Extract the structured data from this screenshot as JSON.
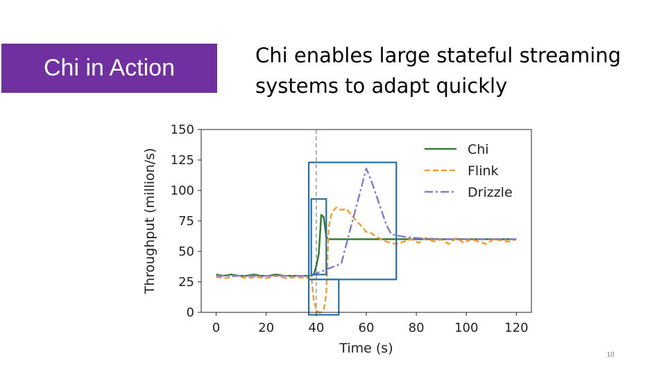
{
  "section_tab": {
    "label": "Chi in Action"
  },
  "slide": {
    "title_line1": "Chi enables large stateful streaming",
    "title_line2": "systems to adapt quickly",
    "number": "10"
  },
  "colors": {
    "section_tab": "#7030a0",
    "Chi": "#2e7d32",
    "Flink": "#f0a030",
    "Drizzle": "#8878d8",
    "highlight_box": "#1f6fa8",
    "event_line": "#999999"
  },
  "chart_data": {
    "type": "line",
    "xlabel": "Time (s)",
    "ylabel": "Throughput (million/s)",
    "xlim": [
      -6,
      126
    ],
    "ylim": [
      0,
      150
    ],
    "xticks": [
      0,
      20,
      40,
      60,
      80,
      100,
      120
    ],
    "yticks": [
      0,
      25,
      50,
      75,
      100,
      125,
      150
    ],
    "grid": false,
    "legend_position": "top-right",
    "event_marker_x": 40,
    "highlight_regions": [
      {
        "x": [
          37,
          72
        ],
        "y": [
          27,
          123
        ]
      },
      {
        "x": [
          38,
          44
        ],
        "y": [
          31,
          93
        ]
      },
      {
        "x": [
          37,
          49
        ],
        "y": [
          -2,
          27
        ]
      }
    ],
    "series": [
      {
        "name": "Chi",
        "style": "solid",
        "x": [
          0,
          3,
          6,
          9,
          12,
          15,
          18,
          21,
          24,
          27,
          30,
          33,
          36,
          38,
          39,
          40,
          41,
          42,
          43,
          44,
          45,
          50,
          60,
          70,
          80,
          90,
          100,
          110,
          120
        ],
        "y": [
          31,
          30,
          31,
          30,
          30,
          31,
          30,
          30,
          31,
          30,
          30,
          30,
          30,
          30,
          31,
          38,
          48,
          80,
          78,
          62,
          60,
          60,
          60,
          60,
          60,
          60,
          60,
          60,
          60
        ]
      },
      {
        "name": "Flink",
        "style": "dashed",
        "x": [
          0,
          4,
          8,
          12,
          16,
          20,
          24,
          28,
          32,
          36,
          38,
          39,
          40,
          41,
          42,
          43,
          44,
          45,
          46,
          47,
          48,
          50,
          52,
          54,
          56,
          58,
          60,
          62,
          64,
          66,
          68,
          70,
          72,
          75,
          78,
          81,
          84,
          87,
          90,
          93,
          96,
          99,
          102,
          105,
          108,
          111,
          114,
          117,
          120
        ],
        "y": [
          29,
          28,
          30,
          28,
          29,
          28,
          30,
          28,
          29,
          28,
          30,
          10,
          2,
          0,
          0,
          2,
          15,
          70,
          80,
          84,
          86,
          84,
          85,
          80,
          75,
          71,
          66,
          65,
          62,
          60,
          58,
          57,
          56,
          58,
          60,
          57,
          61,
          58,
          60,
          56,
          61,
          57,
          60,
          58,
          56,
          60,
          59,
          58,
          60
        ]
      },
      {
        "name": "Drizzle",
        "style": "dashdot",
        "x": [
          0,
          10,
          20,
          30,
          38,
          40,
          45,
          50,
          60,
          62,
          65,
          68,
          70,
          75,
          80,
          90,
          100,
          110,
          120
        ],
        "y": [
          30,
          30,
          30,
          30,
          30,
          32,
          36,
          40,
          118,
          108,
          90,
          72,
          64,
          62,
          61,
          60,
          60,
          60,
          60
        ]
      }
    ]
  }
}
